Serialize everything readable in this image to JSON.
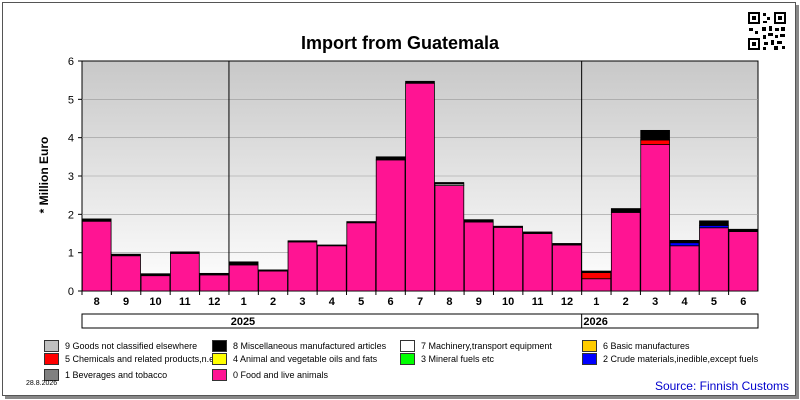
{
  "chart_data": {
    "type": "bar",
    "stacked": true,
    "title": "Import from Guatemala",
    "ylabel": "* Million Euro",
    "xlabel": "",
    "ylim": [
      0,
      6
    ],
    "y_ticks": [
      "0",
      "1",
      "2",
      "3",
      "4",
      "5",
      "6"
    ],
    "grid": true,
    "categories": [
      "8",
      "9",
      "10",
      "11",
      "12",
      "1",
      "2",
      "3",
      "4",
      "5",
      "6",
      "7",
      "8",
      "9",
      "10",
      "11",
      "12",
      "1",
      "2",
      "3",
      "4",
      "5",
      "6"
    ],
    "year_groups": [
      {
        "label": "2025",
        "start": 5,
        "end": 16
      },
      {
        "label": "2026",
        "start": 17,
        "end": 22
      }
    ],
    "series": [
      {
        "name": "0 Food and live animals",
        "color": "#ff1493",
        "values": [
          1.82,
          0.92,
          0.4,
          0.98,
          0.42,
          0.68,
          0.52,
          1.28,
          1.18,
          1.78,
          3.42,
          5.42,
          2.75,
          1.8,
          1.66,
          1.5,
          1.2,
          0.32,
          2.05,
          3.82,
          1.18,
          1.65,
          1.55
        ]
      },
      {
        "name": "2 Crude materials,inedible,except fuels",
        "color": "#0000ff",
        "values": [
          0,
          0,
          0,
          0,
          0,
          0,
          0,
          0,
          0,
          0,
          0,
          0,
          0,
          0,
          0,
          0,
          0,
          0,
          0,
          0,
          0.08,
          0.06,
          0
        ]
      },
      {
        "name": "5 Chemicals and related products,n.e.s.",
        "color": "#ff0000",
        "values": [
          0,
          0,
          0,
          0,
          0,
          0,
          0,
          0,
          0,
          0,
          0,
          0,
          0,
          0,
          0,
          0,
          0,
          0.16,
          0,
          0.12,
          0,
          0,
          0
        ]
      },
      {
        "name": "7 Machinery,transport equipment",
        "color": "#ffffff",
        "values": [
          0,
          0,
          0,
          0,
          0,
          0,
          0,
          0,
          0,
          0,
          0,
          0,
          0.04,
          0,
          0,
          0,
          0,
          0,
          0,
          0,
          0,
          0,
          0
        ]
      },
      {
        "name": "8 Miscellaneous manufactured articles",
        "color": "#000000",
        "values": [
          0.06,
          0.04,
          0.05,
          0.04,
          0.04,
          0.08,
          0.03,
          0.03,
          0.02,
          0.03,
          0.08,
          0.05,
          0.04,
          0.06,
          0.03,
          0.04,
          0.04,
          0.04,
          0.1,
          0.25,
          0.06,
          0.12,
          0.06
        ]
      }
    ],
    "legend_position": "bottom"
  },
  "legend": [
    {
      "label": "9 Goods not classified elsewhere",
      "color": "#c0c0c0"
    },
    {
      "label": "8 Miscellaneous manufactured articles",
      "color": "#000000"
    },
    {
      "label": "7 Machinery,transport equipment",
      "color": "#ffffff"
    },
    {
      "label": "6 Basic manufactures",
      "color": "#ffcc00"
    },
    {
      "label": "5 Chemicals and related products,n.e.s.",
      "color": "#ff0000"
    },
    {
      "label": "4 Animal and vegetable oils and fats",
      "color": "#ffff00"
    },
    {
      "label": "3 Mineral fuels etc",
      "color": "#00ff00"
    },
    {
      "label": "2 Crude materials,inedible,except fuels",
      "color": "#0000ff"
    },
    {
      "label": "1 Beverages and tobacco",
      "color": "#808080"
    },
    {
      "label": "0 Food and live animals",
      "color": "#ff1493"
    }
  ],
  "date_stamp": "28.8.2026",
  "source": "Source: Finnish Customs",
  "qr_icon": "qr-code-icon"
}
